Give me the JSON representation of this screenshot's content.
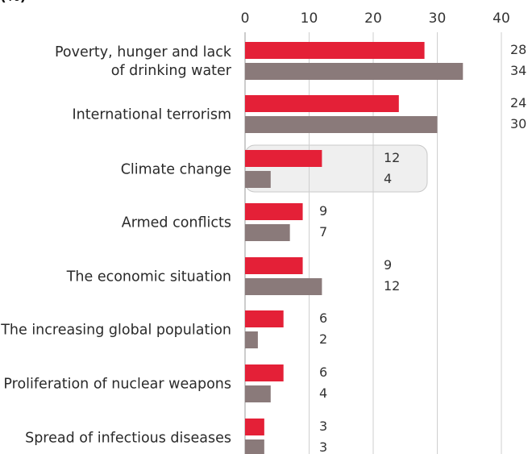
{
  "chart_data": {
    "type": "bar",
    "orientation": "horizontal",
    "unit_label": "(%)",
    "categories": [
      "Poverty, hunger and lack\nof drinking water",
      "International terrorism",
      "Climate change",
      "Armed conflicts",
      "The economic situation",
      "The increasing global population",
      "Proliferation of nuclear weapons",
      "Spread of infectious diseases"
    ],
    "series": [
      {
        "values": [
          28,
          24,
          12,
          9,
          9,
          6,
          6,
          3
        ],
        "color": "#e42037"
      },
      {
        "values": [
          34,
          30,
          4,
          7,
          12,
          2,
          4,
          3
        ],
        "color": "#8a7a7a"
      }
    ],
    "xlim": [
      0,
      40
    ],
    "xticks": [
      "0",
      "10",
      "20",
      "30",
      "40"
    ],
    "grid": "vertical",
    "highlight_category": "Climate change",
    "highlight_color": "#efefef"
  }
}
